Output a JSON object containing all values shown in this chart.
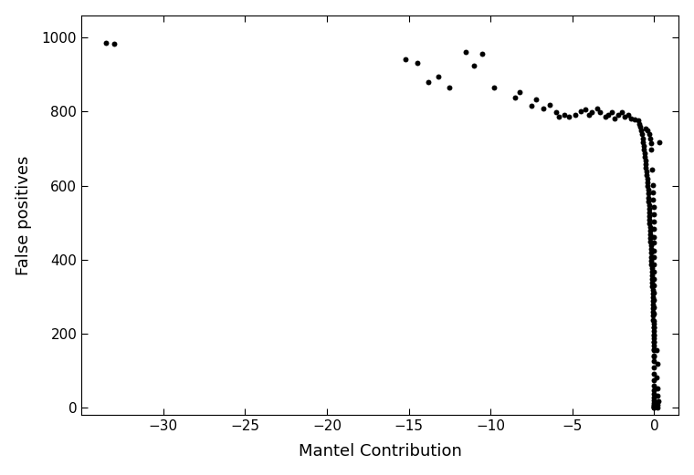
{
  "xlabel": "Mantel Contribution",
  "ylabel": "False positives",
  "xlim": [
    -35,
    1.5
  ],
  "ylim": [
    -20,
    1060
  ],
  "xticks": [
    -30,
    -25,
    -20,
    -15,
    -10,
    -5,
    0
  ],
  "yticks": [
    0,
    200,
    400,
    600,
    800,
    1000
  ],
  "marker_color": "black",
  "marker_size": 18,
  "background_color": "white",
  "points": [
    [
      -33.5,
      985
    ],
    [
      -33.0,
      983
    ],
    [
      -15.2,
      940
    ],
    [
      -14.5,
      930
    ],
    [
      -13.8,
      880
    ],
    [
      -13.2,
      895
    ],
    [
      -12.5,
      865
    ],
    [
      -11.5,
      960
    ],
    [
      -11.0,
      925
    ],
    [
      -10.5,
      955
    ],
    [
      -9.8,
      865
    ],
    [
      -8.5,
      838
    ],
    [
      -8.2,
      852
    ],
    [
      -7.5,
      815
    ],
    [
      -7.2,
      832
    ],
    [
      -6.8,
      808
    ],
    [
      -6.4,
      818
    ],
    [
      -6.0,
      798
    ],
    [
      -5.8,
      785
    ],
    [
      -5.5,
      790
    ],
    [
      -5.2,
      785
    ],
    [
      -4.8,
      792
    ],
    [
      -4.5,
      800
    ],
    [
      -4.2,
      805
    ],
    [
      -4.0,
      792
    ],
    [
      -3.8,
      798
    ],
    [
      -3.5,
      808
    ],
    [
      -3.3,
      798
    ],
    [
      -3.0,
      785
    ],
    [
      -2.8,
      792
    ],
    [
      -2.6,
      798
    ],
    [
      -2.4,
      780
    ],
    [
      -2.2,
      790
    ],
    [
      -2.0,
      798
    ],
    [
      -1.8,
      785
    ],
    [
      -1.6,
      792
    ],
    [
      -1.4,
      782
    ],
    [
      -1.2,
      778
    ],
    [
      -1.0,
      775
    ],
    [
      -0.9,
      765
    ],
    [
      -0.85,
      758
    ],
    [
      -0.8,
      748
    ],
    [
      -0.75,
      738
    ],
    [
      -0.7,
      728
    ],
    [
      -0.68,
      718
    ],
    [
      -0.65,
      708
    ],
    [
      -0.62,
      698
    ],
    [
      -0.6,
      688
    ],
    [
      -0.58,
      678
    ],
    [
      -0.55,
      668
    ],
    [
      -0.53,
      658
    ],
    [
      -0.5,
      648
    ],
    [
      -0.48,
      638
    ],
    [
      -0.46,
      628
    ],
    [
      -0.44,
      618
    ],
    [
      -0.42,
      608
    ],
    [
      -0.4,
      598
    ],
    [
      -0.38,
      588
    ],
    [
      -0.36,
      578
    ],
    [
      -0.35,
      568
    ],
    [
      -0.34,
      558
    ],
    [
      -0.33,
      548
    ],
    [
      -0.32,
      538
    ],
    [
      -0.31,
      528
    ],
    [
      -0.3,
      518
    ],
    [
      -0.29,
      508
    ],
    [
      -0.28,
      498
    ],
    [
      -0.27,
      488
    ],
    [
      -0.26,
      478
    ],
    [
      -0.25,
      468
    ],
    [
      -0.24,
      458
    ],
    [
      -0.23,
      448
    ],
    [
      -0.22,
      438
    ],
    [
      -0.21,
      428
    ],
    [
      -0.2,
      418
    ],
    [
      -0.19,
      408
    ],
    [
      -0.18,
      398
    ],
    [
      -0.17,
      388
    ],
    [
      -0.16,
      378
    ],
    [
      -0.15,
      368
    ],
    [
      -0.14,
      358
    ],
    [
      -0.13,
      348
    ],
    [
      -0.12,
      338
    ],
    [
      -0.11,
      328
    ],
    [
      -0.1,
      318
    ],
    [
      -0.09,
      308
    ],
    [
      -0.085,
      298
    ],
    [
      -0.08,
      288
    ],
    [
      -0.075,
      278
    ],
    [
      -0.07,
      268
    ],
    [
      -0.065,
      258
    ],
    [
      -0.06,
      248
    ],
    [
      -0.055,
      238
    ],
    [
      -0.05,
      228
    ],
    [
      -0.045,
      218
    ],
    [
      -0.04,
      208
    ],
    [
      -0.035,
      198
    ],
    [
      -0.03,
      188
    ],
    [
      -0.025,
      178
    ],
    [
      -0.02,
      168
    ],
    [
      -0.015,
      155
    ],
    [
      -0.01,
      140
    ],
    [
      -0.005,
      125
    ],
    [
      0.0,
      108
    ],
    [
      0.0,
      92
    ],
    [
      0.0,
      75
    ],
    [
      0.0,
      60
    ],
    [
      0.0,
      48
    ],
    [
      0.0,
      38
    ],
    [
      0.0,
      28
    ],
    [
      0.0,
      20
    ],
    [
      0.0,
      14
    ],
    [
      0.0,
      9
    ],
    [
      0.0,
      5
    ],
    [
      0.0,
      2
    ],
    [
      0.0,
      0
    ],
    [
      0.0,
      0
    ],
    [
      -0.5,
      755
    ],
    [
      -0.4,
      748
    ],
    [
      -0.3,
      738
    ],
    [
      -0.25,
      728
    ],
    [
      -0.22,
      715
    ],
    [
      -0.18,
      698
    ],
    [
      -0.14,
      642
    ],
    [
      -0.1,
      602
    ],
    [
      -0.08,
      582
    ],
    [
      -0.06,
      562
    ],
    [
      -0.04,
      542
    ],
    [
      -0.02,
      522
    ],
    [
      0.0,
      502
    ],
    [
      0.0,
      482
    ],
    [
      0.0,
      462
    ],
    [
      0.0,
      445
    ],
    [
      0.0,
      425
    ],
    [
      0.0,
      408
    ],
    [
      0.0,
      388
    ],
    [
      0.0,
      368
    ],
    [
      0.0,
      348
    ],
    [
      0.0,
      330
    ],
    [
      0.0,
      310
    ],
    [
      0.0,
      292
    ],
    [
      0.0,
      272
    ],
    [
      0.0,
      255
    ],
    [
      0.0,
      235
    ],
    [
      0.0,
      218
    ],
    [
      0.0,
      195
    ],
    [
      0.0,
      178
    ],
    [
      0.0,
      158
    ],
    [
      0.0,
      138
    ],
    [
      0.3,
      718
    ],
    [
      0.15,
      155
    ],
    [
      0.18,
      118
    ],
    [
      0.12,
      82
    ],
    [
      0.22,
      52
    ],
    [
      0.18,
      32
    ],
    [
      0.25,
      18
    ],
    [
      0.2,
      8
    ],
    [
      0.15,
      3
    ],
    [
      0.2,
      1
    ]
  ]
}
